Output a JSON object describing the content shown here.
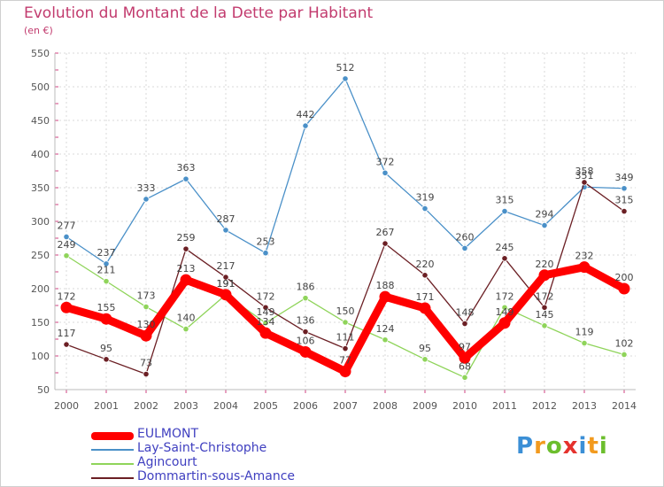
{
  "chart_data": {
    "type": "line",
    "title": "Evolution du Montant de la Dette par Habitant",
    "unit_label": "(en €)",
    "x": [
      "2000",
      "2001",
      "2002",
      "2003",
      "2004",
      "2005",
      "2006",
      "2007",
      "2008",
      "2009",
      "2010",
      "2011",
      "2012",
      "2013",
      "2014"
    ],
    "ylim": [
      50,
      550
    ],
    "y_ticks": [
      50,
      100,
      150,
      200,
      250,
      300,
      350,
      400,
      450,
      500,
      550
    ],
    "grid": true,
    "legend_placement": "bottom-left",
    "series": [
      {
        "name": "Lay-Saint-Christophe",
        "color": "#4a90c8",
        "values": [
          277,
          237,
          333,
          363,
          287,
          253,
          442,
          512,
          372,
          319,
          260,
          315,
          294,
          351,
          349
        ]
      },
      {
        "name": "Agincourt",
        "color": "#8fd45a",
        "values": [
          249,
          211,
          173,
          140,
          191,
          149,
          186,
          150,
          124,
          95,
          68,
          172,
          145,
          119,
          102
        ]
      },
      {
        "name": "Dommartin-sous-Amance",
        "color": "#6b1f24",
        "values": [
          117,
          95,
          73,
          259,
          217,
          172,
          136,
          111,
          267,
          220,
          148,
          245,
          172,
          358,
          315
        ]
      },
      {
        "name": "EULMONT",
        "color": "#ff0000",
        "values": [
          172,
          155,
          130,
          213,
          191,
          134,
          106,
          77,
          188,
          171,
          97,
          149,
          220,
          232,
          200
        ]
      }
    ]
  },
  "legend": [
    {
      "label": "EULMONT",
      "color": "#ff0000",
      "thickness": 9
    },
    {
      "label": "Lay-Saint-Christophe",
      "color": "#4a90c8",
      "thickness": 2
    },
    {
      "label": "Agincourt",
      "color": "#8fd45a",
      "thickness": 2
    },
    {
      "label": "Dommartin-sous-Amance",
      "color": "#6b1f24",
      "thickness": 2
    }
  ],
  "brand": {
    "letters": [
      {
        "ch": "P",
        "color": "#3b8fd6"
      },
      {
        "ch": "r",
        "color": "#f29a1e"
      },
      {
        "ch": "o",
        "color": "#6cbe2d"
      },
      {
        "ch": "x",
        "color": "#e5322d"
      },
      {
        "ch": "i",
        "color": "#3b8fd6"
      },
      {
        "ch": "t",
        "color": "#f29a1e"
      },
      {
        "ch": "i",
        "color": "#6cbe2d"
      }
    ]
  }
}
